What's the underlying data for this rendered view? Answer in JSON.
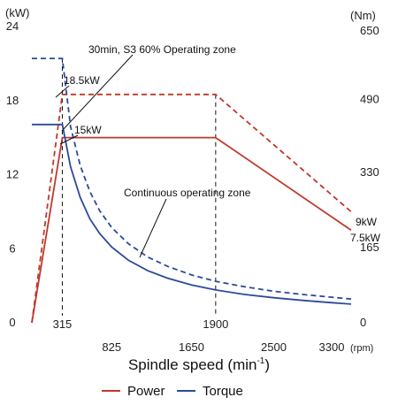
{
  "chart_data": {
    "type": "line",
    "xlabel": "Spindle speed (min",
    "xlabel_sup": "-1",
    "xlabel_close": ")",
    "x_unit": "(rpm)",
    "y_left_unit": "(kW)",
    "y_right_unit": "(Nm)",
    "xlim": [
      0,
      3300
    ],
    "ylim_left": [
      0,
      24
    ],
    "ylim_right": [
      0,
      650
    ],
    "x_ticks": [
      825,
      1650,
      2500,
      3300
    ],
    "x_tick_labels": [
      "825",
      "1650",
      "2500",
      "3300"
    ],
    "y_left_ticks": [
      0,
      6,
      12,
      18,
      24
    ],
    "y_left_tick_labels": [
      "0",
      "6",
      "12",
      "18",
      "24"
    ],
    "y_right_ticks": [
      0,
      165,
      330,
      490,
      650
    ],
    "y_right_tick_labels": [
      "0",
      "165",
      "330",
      "490",
      "650"
    ],
    "marker_speeds": [
      315,
      1900
    ],
    "marker_labels": [
      "315",
      "1900"
    ],
    "grid": false,
    "legend_position": "bottom-center",
    "series": [
      {
        "name": "Power",
        "axis": "left",
        "color": "#c0392b",
        "style": "solid",
        "x": [
          0,
          315,
          1900,
          3300
        ],
        "y": [
          0,
          15,
          15,
          7.5
        ]
      },
      {
        "name": "Power",
        "axis": "left",
        "color": "#c0392b",
        "style": "dashed",
        "x": [
          0,
          315,
          1900,
          3300
        ],
        "y": [
          0,
          18.5,
          18.5,
          9
        ]
      },
      {
        "name": "Torque",
        "axis": "right",
        "color": "#2b4a9a",
        "style": "solid",
        "x": [
          0,
          315,
          400,
          500,
          600,
          700,
          825,
          1000,
          1200,
          1400,
          1650,
          1900,
          2200,
          2500,
          2800,
          3100,
          3300
        ],
        "y": [
          435,
          435,
          342,
          275,
          228,
          196,
          166,
          137,
          114,
          98,
          83,
          72,
          62,
          55,
          49,
          44,
          41
        ]
      },
      {
        "name": "Torque",
        "axis": "right",
        "color": "#2b4a9a",
        "style": "dashed",
        "x": [
          0,
          315,
          400,
          500,
          600,
          700,
          825,
          1000,
          1200,
          1400,
          1650,
          1900,
          2200,
          2500,
          2800,
          3100,
          3300
        ],
        "y": [
          580,
          580,
          430,
          345,
          288,
          246,
          209,
          173,
          144,
          124,
          105,
          91,
          79,
          69,
          62,
          56,
          52
        ]
      }
    ],
    "annotations": [
      {
        "text": "30min, S3 60% Operating zone"
      },
      {
        "text": "18.5kW"
      },
      {
        "text": "15kW"
      },
      {
        "text": "Continuous operating zone"
      },
      {
        "text": "9kW"
      },
      {
        "text": "7.5kW"
      }
    ],
    "legend": [
      {
        "label": "Power",
        "color": "#c0392b"
      },
      {
        "label": "Torque",
        "color": "#2b4a9a"
      }
    ]
  }
}
